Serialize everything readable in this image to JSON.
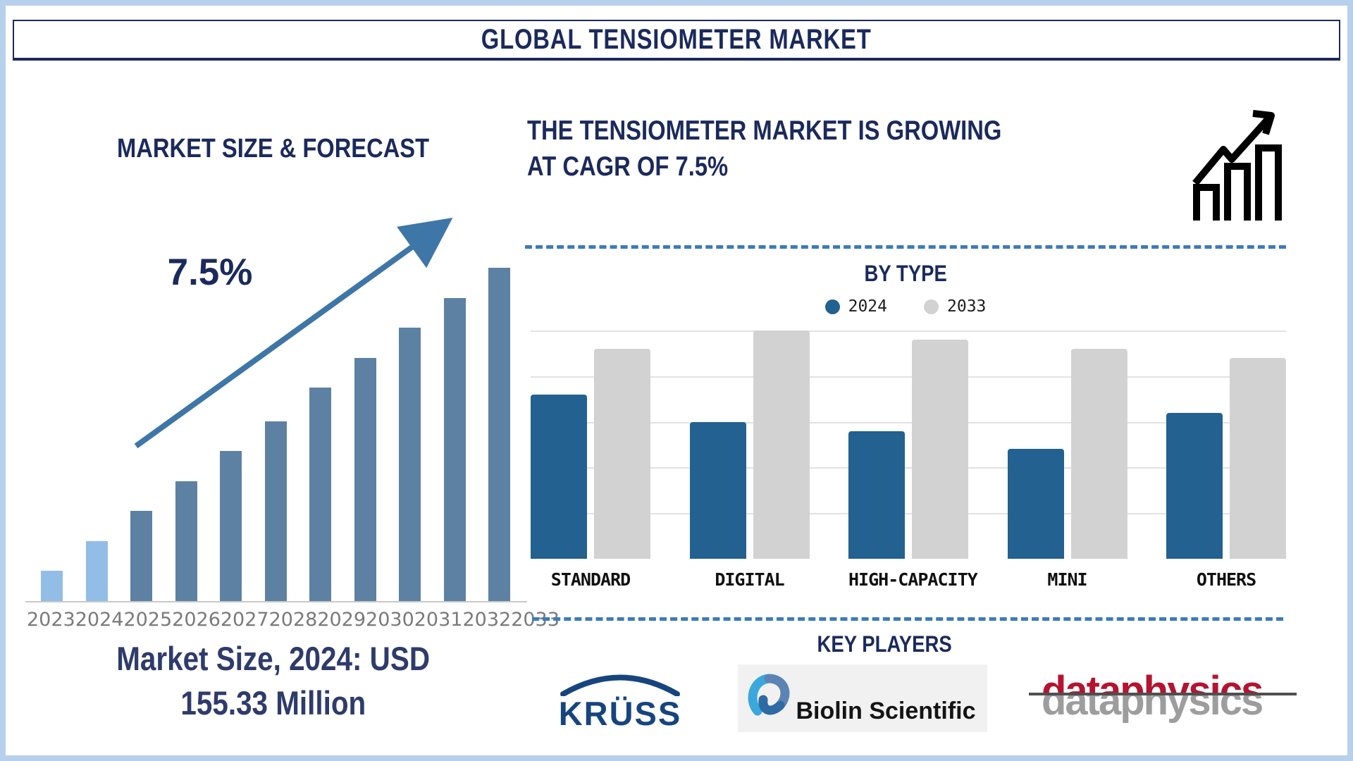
{
  "page_title": "GLOBAL TENSIOMETER MARKET",
  "left_panel": {
    "section_title": "MARKET SIZE & FORECAST",
    "cagr_annotation": "7.5%",
    "caption_line1": "Market Size, 2024: USD",
    "caption_line2": "155.33 Million"
  },
  "right_panel": {
    "heading_line1": "THE TENSIOMETER MARKET IS GROWING",
    "heading_line2": "AT CAGR OF 7.5%",
    "by_type_title": "BY TYPE",
    "key_players_title": "KEY PLAYERS",
    "players": {
      "kruss": "KRÜSS",
      "biolin": "Biolin Scientific",
      "dataphysics": "dataphysics"
    }
  },
  "colors": {
    "page_border": "#b7d0ec",
    "navy_text": "#1b2a5c",
    "caption_navy": "#2e3b6b",
    "forecast_bar_highlight": "#92bde7",
    "forecast_bar_default": "#5d81a3",
    "trend_arrow": "#3e76a8",
    "dashed_divider": "#3c7bbd",
    "bar_2024_blue": "#226190",
    "bar_2033_gray": "#d2d2d2",
    "axis_gray": "#c9c9c9",
    "year_label_gray": "#7a7a7a",
    "kruss_navy": "#16457e",
    "dataphysics_red": "#b41430",
    "dataphysics_gray": "#9d9d9d"
  },
  "chart_data": [
    {
      "type": "bar",
      "title": "MARKET SIZE & FORECAST",
      "categories": [
        "2023",
        "2024",
        "2025",
        "2026",
        "2027",
        "2028",
        "2029",
        "2030",
        "2031",
        "2032",
        "2033"
      ],
      "values_relative_pct": [
        9,
        18,
        27,
        36,
        45,
        54,
        64,
        73,
        82,
        91,
        100
      ],
      "highlight_categories": [
        "2023",
        "2024"
      ],
      "annotation": "7.5%",
      "caption": "Market Size, 2024: USD 155.33 Million",
      "xlabel": "",
      "ylabel": "",
      "grid": false,
      "note": "Stylized forecast bars, no numeric y-axis shown; heights are % of the tallest (2033) bar. 2024 market size = USD 155.33 Million, CAGR 7.5%."
    },
    {
      "type": "bar",
      "subtype": "grouped",
      "title": "BY TYPE",
      "categories": [
        "STANDARD",
        "DIGITAL",
        "HIGH-CAPACITY",
        "MINI",
        "OTHERS"
      ],
      "series": [
        {
          "name": "2024",
          "color": "#226190",
          "values_relative_pct": [
            72,
            60,
            56,
            48,
            64
          ]
        },
        {
          "name": "2033",
          "color": "#d2d2d2",
          "values_relative_pct": [
            92,
            100,
            96,
            92,
            88
          ]
        }
      ],
      "ylim": [
        0,
        100
      ],
      "grid": true,
      "legend_position": "top",
      "note": "No numeric axis shown; values are relative bar heights as % of the tallest bar (DIGITAL 2033)."
    }
  ]
}
